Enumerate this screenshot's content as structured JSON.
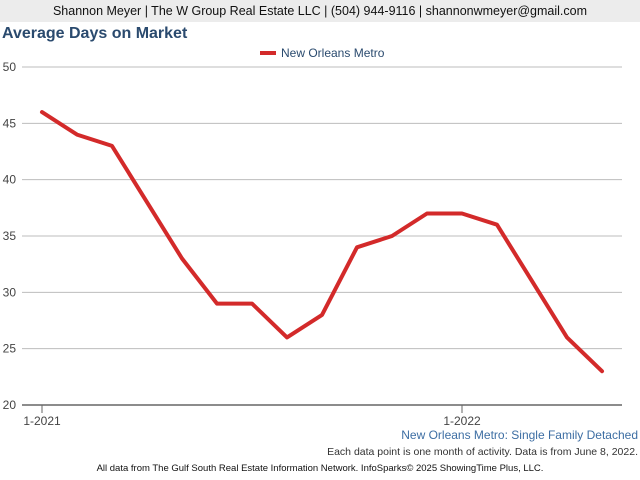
{
  "header": {
    "contact": "Shannon Meyer | The W Group Real Estate LLC | (504) 944-9116 | shannonwmeyer@gmail.com"
  },
  "chart_data": {
    "type": "line",
    "title": "Average Days on Market",
    "xlabel": "",
    "ylabel": "",
    "ylim": [
      20,
      50
    ],
    "yticks": [
      20,
      25,
      30,
      35,
      40,
      45,
      50
    ],
    "x": [
      "1-2021",
      "2-2021",
      "3-2021",
      "4-2021",
      "5-2021",
      "6-2021",
      "7-2021",
      "8-2021",
      "9-2021",
      "10-2021",
      "11-2021",
      "12-2021",
      "1-2022",
      "2-2022",
      "3-2022",
      "4-2022",
      "5-2022"
    ],
    "xtick_labels": [
      "1-2021",
      "1-2022"
    ],
    "series": [
      {
        "name": "New Orleans Metro",
        "color": "#d32a2a",
        "values": [
          46,
          44,
          43,
          38,
          33,
          29,
          29,
          26,
          28,
          34,
          35,
          37,
          37,
          36,
          31,
          26,
          23
        ]
      }
    ],
    "grid": true,
    "legend": "top-center"
  },
  "subtitle": "New Orleans Metro: Single Family Detached",
  "note": "Each data point is one month of activity. Data is from June 8, 2022.",
  "footer": "All data from The Gulf South Real Estate Information Network. InfoSparks© 2025 ShowingTime Plus, LLC."
}
